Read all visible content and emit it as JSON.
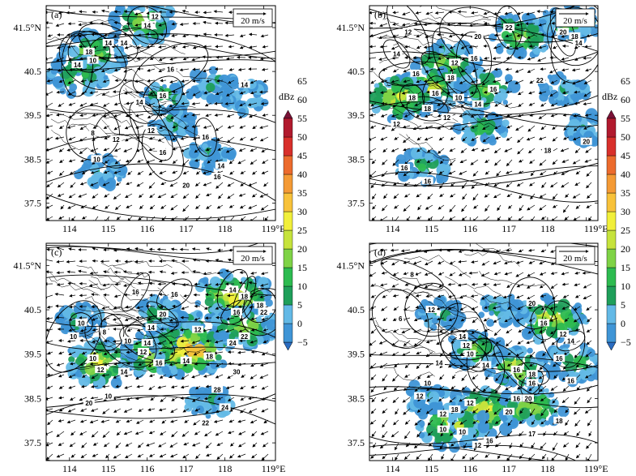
{
  "chart_data": {
    "type": "heatmap",
    "description_free": true,
    "x_axis": {
      "ticks": [
        114,
        115,
        116,
        117,
        118,
        119
      ],
      "labels": [
        "114",
        "115",
        "116",
        "117",
        "118",
        "119°E"
      ],
      "range": [
        113.4,
        119.3
      ]
    },
    "y_axis": {
      "ticks": [
        37.5,
        38.5,
        39.5,
        40.5,
        41.5
      ],
      "labels": [
        "37.5",
        "38.5",
        "39.5",
        "40.5",
        "41.5°N"
      ],
      "range": [
        37.1,
        42.0
      ]
    },
    "colorbar": {
      "unit": "dBz",
      "levels": [
        -5,
        0,
        5,
        10,
        15,
        20,
        25,
        30,
        35,
        40,
        45,
        50,
        55,
        60,
        65
      ],
      "labels": [
        "−5",
        "0",
        "5",
        "10",
        "15",
        "20",
        "25",
        "30",
        "35",
        "40",
        "45",
        "50",
        "55",
        "60",
        "65"
      ],
      "colors": [
        "#2a6cc1",
        "#3f95d6",
        "#63b9e6",
        "#1f9f5a",
        "#2dbb50",
        "#7fd346",
        "#c6e33c",
        "#f1ef3a",
        "#f8c23a",
        "#f49a35",
        "#ec6b2d",
        "#d8302b",
        "#b11a2e",
        "#7a1237"
      ]
    },
    "panels": [
      {
        "label": "(a)",
        "vector_ref": "20 m/s",
        "echo": [
          {
            "lon": 115.9,
            "lat": 41.6,
            "dbz": 25
          },
          {
            "lon": 114.6,
            "lat": 40.9,
            "dbz": 25
          },
          {
            "lon": 114.2,
            "lat": 40.4,
            "dbz": 20
          },
          {
            "lon": 116.5,
            "lat": 39.9,
            "dbz": 15
          },
          {
            "lon": 117.7,
            "lat": 40.2,
            "dbz": 10
          },
          {
            "lon": 118.5,
            "lat": 39.9,
            "dbz": 10
          },
          {
            "lon": 116.7,
            "lat": 39.3,
            "dbz": 10
          },
          {
            "lon": 114.8,
            "lat": 38.2,
            "dbz": 10
          },
          {
            "lon": 117.6,
            "lat": 38.6,
            "dbz": 10
          }
        ],
        "contour_labels": [
          {
            "lon": 116.0,
            "lat": 41.55,
            "text": "14"
          },
          {
            "lon": 115.4,
            "lat": 41.15,
            "text": "14"
          },
          {
            "lon": 115.0,
            "lat": 41.15,
            "text": "14"
          },
          {
            "lon": 114.6,
            "lat": 40.75,
            "text": "10"
          },
          {
            "lon": 114.2,
            "lat": 40.65,
            "text": "14"
          },
          {
            "lon": 114.5,
            "lat": 40.95,
            "text": "18"
          },
          {
            "lon": 116.6,
            "lat": 40.55,
            "text": "16"
          },
          {
            "lon": 116.4,
            "lat": 39.95,
            "text": "16"
          },
          {
            "lon": 115.8,
            "lat": 39.8,
            "text": "14"
          },
          {
            "lon": 116.1,
            "lat": 39.15,
            "text": "12"
          },
          {
            "lon": 116.4,
            "lat": 38.65,
            "text": "16"
          },
          {
            "lon": 117.5,
            "lat": 39.0,
            "text": "16"
          },
          {
            "lon": 115.2,
            "lat": 38.95,
            "text": "12"
          },
          {
            "lon": 114.6,
            "lat": 39.1,
            "text": "8"
          },
          {
            "lon": 114.7,
            "lat": 38.5,
            "text": "10"
          },
          {
            "lon": 117.9,
            "lat": 38.35,
            "text": "14"
          },
          {
            "lon": 117.8,
            "lat": 38.1,
            "text": "16"
          },
          {
            "lon": 117.0,
            "lat": 37.9,
            "text": "20"
          },
          {
            "lon": 118.5,
            "lat": 40.2,
            "text": "14"
          },
          {
            "lon": 116.2,
            "lat": 41.75,
            "text": "12"
          }
        ]
      },
      {
        "label": "(b)",
        "vector_ref": "20 m/s",
        "echo": [
          {
            "lon": 117.3,
            "lat": 41.3,
            "dbz": 25
          },
          {
            "lon": 115.4,
            "lat": 40.7,
            "dbz": 25
          },
          {
            "lon": 115.0,
            "lat": 40.1,
            "dbz": 30
          },
          {
            "lon": 116.4,
            "lat": 40.1,
            "dbz": 20
          },
          {
            "lon": 114.2,
            "lat": 39.9,
            "dbz": 30
          },
          {
            "lon": 116.3,
            "lat": 39.2,
            "dbz": 15
          },
          {
            "lon": 118.4,
            "lat": 40.1,
            "dbz": 10
          },
          {
            "lon": 114.8,
            "lat": 38.3,
            "dbz": 15
          },
          {
            "lon": 118.6,
            "lat": 41.6,
            "dbz": 20
          },
          {
            "lon": 119.0,
            "lat": 39.2,
            "dbz": 10
          }
        ],
        "contour_labels": [
          {
            "lon": 117.0,
            "lat": 41.5,
            "text": "22"
          },
          {
            "lon": 116.2,
            "lat": 41.3,
            "text": "20"
          },
          {
            "lon": 118.4,
            "lat": 41.4,
            "text": "20"
          },
          {
            "lon": 118.7,
            "lat": 41.3,
            "text": "18"
          },
          {
            "lon": 118.8,
            "lat": 41.15,
            "text": "14"
          },
          {
            "lon": 114.4,
            "lat": 41.4,
            "text": "12"
          },
          {
            "lon": 114.1,
            "lat": 40.9,
            "text": "14"
          },
          {
            "lon": 114.6,
            "lat": 40.45,
            "text": "16"
          },
          {
            "lon": 115.6,
            "lat": 40.7,
            "text": "12"
          },
          {
            "lon": 116.1,
            "lat": 40.8,
            "text": "16"
          },
          {
            "lon": 115.5,
            "lat": 40.35,
            "text": "18"
          },
          {
            "lon": 115.1,
            "lat": 40.0,
            "text": "16"
          },
          {
            "lon": 114.5,
            "lat": 39.9,
            "text": "18"
          },
          {
            "lon": 114.9,
            "lat": 39.65,
            "text": "18"
          },
          {
            "lon": 115.4,
            "lat": 39.45,
            "text": "12"
          },
          {
            "lon": 115.7,
            "lat": 39.9,
            "text": "10"
          },
          {
            "lon": 116.2,
            "lat": 39.75,
            "text": "14"
          },
          {
            "lon": 116.6,
            "lat": 40.1,
            "text": "16"
          },
          {
            "lon": 114.1,
            "lat": 39.3,
            "text": "12"
          },
          {
            "lon": 114.3,
            "lat": 38.3,
            "text": "16"
          },
          {
            "lon": 114.9,
            "lat": 38.0,
            "text": "16"
          },
          {
            "lon": 118.0,
            "lat": 38.7,
            "text": "18"
          },
          {
            "lon": 117.8,
            "lat": 40.3,
            "text": "22"
          },
          {
            "lon": 119.0,
            "lat": 38.9,
            "text": "20"
          }
        ]
      },
      {
        "label": "(c)",
        "vector_ref": "20 m/s",
        "echo": [
          {
            "lon": 117.0,
            "lat": 40.0,
            "dbz": 25
          },
          {
            "lon": 116.2,
            "lat": 39.5,
            "dbz": 30
          },
          {
            "lon": 117.1,
            "lat": 39.6,
            "dbz": 40
          },
          {
            "lon": 114.8,
            "lat": 39.3,
            "dbz": 30
          },
          {
            "lon": 118.2,
            "lat": 40.8,
            "dbz": 35
          },
          {
            "lon": 118.5,
            "lat": 40.1,
            "dbz": 25
          },
          {
            "lon": 116.3,
            "lat": 40.4,
            "dbz": 15
          },
          {
            "lon": 114.3,
            "lat": 40.3,
            "dbz": 10
          },
          {
            "lon": 117.6,
            "lat": 38.4,
            "dbz": 10
          }
        ],
        "contour_labels": [
          {
            "lon": 115.7,
            "lat": 40.9,
            "text": "16"
          },
          {
            "lon": 116.7,
            "lat": 40.85,
            "text": "16"
          },
          {
            "lon": 118.2,
            "lat": 40.95,
            "text": "14"
          },
          {
            "lon": 118.5,
            "lat": 40.8,
            "text": "18"
          },
          {
            "lon": 118.9,
            "lat": 40.6,
            "text": "18"
          },
          {
            "lon": 118.3,
            "lat": 40.45,
            "text": "16"
          },
          {
            "lon": 119.0,
            "lat": 40.45,
            "text": "22"
          },
          {
            "lon": 116.4,
            "lat": 40.4,
            "text": "20"
          },
          {
            "lon": 116.1,
            "lat": 40.1,
            "text": "14"
          },
          {
            "lon": 114.9,
            "lat": 40.0,
            "text": "8"
          },
          {
            "lon": 114.3,
            "lat": 40.2,
            "text": "10"
          },
          {
            "lon": 114.1,
            "lat": 39.9,
            "text": "10"
          },
          {
            "lon": 115.5,
            "lat": 39.8,
            "text": "10"
          },
          {
            "lon": 116.0,
            "lat": 39.75,
            "text": "14"
          },
          {
            "lon": 115.9,
            "lat": 39.55,
            "text": "12"
          },
          {
            "lon": 117.3,
            "lat": 40.05,
            "text": "12"
          },
          {
            "lon": 117.6,
            "lat": 39.45,
            "text": "18"
          },
          {
            "lon": 117.0,
            "lat": 39.35,
            "text": "14"
          },
          {
            "lon": 116.3,
            "lat": 39.3,
            "text": "16"
          },
          {
            "lon": 114.6,
            "lat": 39.4,
            "text": "10"
          },
          {
            "lon": 114.8,
            "lat": 39.15,
            "text": "12"
          },
          {
            "lon": 115.4,
            "lat": 39.1,
            "text": "14"
          },
          {
            "lon": 115.0,
            "lat": 38.55,
            "text": "10"
          },
          {
            "lon": 114.5,
            "lat": 38.4,
            "text": "20"
          },
          {
            "lon": 118.3,
            "lat": 39.1,
            "text": "30"
          },
          {
            "lon": 117.8,
            "lat": 38.7,
            "text": "28"
          },
          {
            "lon": 118.0,
            "lat": 38.3,
            "text": "24"
          },
          {
            "lon": 118.5,
            "lat": 39.9,
            "text": "22"
          },
          {
            "lon": 118.2,
            "lat": 39.75,
            "text": "24"
          },
          {
            "lon": 117.5,
            "lat": 37.95,
            "text": "22"
          }
        ]
      },
      {
        "label": "(d)",
        "vector_ref": "20 m/s",
        "echo": [
          {
            "lon": 118.1,
            "lat": 40.3,
            "dbz": 30
          },
          {
            "lon": 117.2,
            "lat": 39.2,
            "dbz": 25
          },
          {
            "lon": 116.3,
            "lat": 38.2,
            "dbz": 35
          },
          {
            "lon": 115.5,
            "lat": 37.9,
            "dbz": 30
          },
          {
            "lon": 117.6,
            "lat": 38.3,
            "dbz": 25
          },
          {
            "lon": 116.1,
            "lat": 39.6,
            "dbz": 20
          },
          {
            "lon": 118.7,
            "lat": 39.3,
            "dbz": 20
          },
          {
            "lon": 114.8,
            "lat": 38.5,
            "dbz": 10
          },
          {
            "lon": 116.8,
            "lat": 40.5,
            "dbz": 10
          },
          {
            "lon": 115.2,
            "lat": 40.4,
            "dbz": 10
          }
        ],
        "contour_labels": [
          {
            "lon": 117.6,
            "lat": 40.65,
            "text": "20"
          },
          {
            "lon": 117.9,
            "lat": 40.2,
            "text": "16"
          },
          {
            "lon": 118.4,
            "lat": 39.95,
            "text": "12"
          },
          {
            "lon": 118.6,
            "lat": 39.8,
            "text": "14"
          },
          {
            "lon": 115.0,
            "lat": 40.5,
            "text": "12"
          },
          {
            "lon": 114.2,
            "lat": 40.3,
            "text": "6"
          },
          {
            "lon": 114.5,
            "lat": 41.3,
            "text": "8"
          },
          {
            "lon": 115.8,
            "lat": 39.9,
            "text": "14"
          },
          {
            "lon": 115.9,
            "lat": 39.7,
            "text": "12"
          },
          {
            "lon": 116.0,
            "lat": 39.5,
            "text": "10"
          },
          {
            "lon": 116.4,
            "lat": 39.25,
            "text": "14"
          },
          {
            "lon": 117.2,
            "lat": 39.15,
            "text": "16"
          },
          {
            "lon": 117.6,
            "lat": 39.05,
            "text": "18"
          },
          {
            "lon": 117.6,
            "lat": 38.85,
            "text": "16"
          },
          {
            "lon": 117.2,
            "lat": 38.5,
            "text": "16"
          },
          {
            "lon": 117.5,
            "lat": 38.5,
            "text": "20"
          },
          {
            "lon": 117.0,
            "lat": 38.2,
            "text": "20"
          },
          {
            "lon": 116.0,
            "lat": 38.4,
            "text": "12"
          },
          {
            "lon": 115.6,
            "lat": 38.25,
            "text": "18"
          },
          {
            "lon": 115.3,
            "lat": 38.15,
            "text": "12"
          },
          {
            "lon": 115.3,
            "lat": 37.8,
            "text": "10"
          },
          {
            "lon": 115.8,
            "lat": 37.75,
            "text": "10"
          },
          {
            "lon": 116.5,
            "lat": 37.55,
            "text": "16"
          },
          {
            "lon": 116.2,
            "lat": 37.45,
            "text": "12"
          },
          {
            "lon": 114.7,
            "lat": 38.55,
            "text": "12"
          },
          {
            "lon": 114.9,
            "lat": 38.85,
            "text": "10"
          },
          {
            "lon": 115.2,
            "lat": 39.3,
            "text": "14"
          },
          {
            "lon": 118.3,
            "lat": 38.0,
            "text": "18"
          },
          {
            "lon": 117.6,
            "lat": 37.7,
            "text": "17"
          },
          {
            "lon": 118.6,
            "lat": 38.9,
            "text": "16"
          },
          {
            "lon": 118.3,
            "lat": 39.4,
            "text": "16"
          }
        ]
      }
    ]
  }
}
